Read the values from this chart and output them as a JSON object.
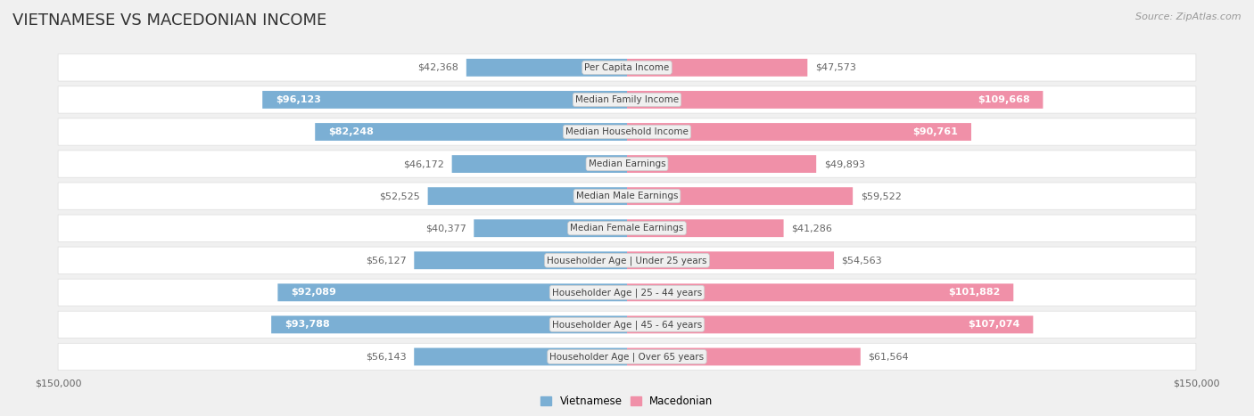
{
  "title": "VIETNAMESE VS MACEDONIAN INCOME",
  "source": "Source: ZipAtlas.com",
  "categories": [
    "Per Capita Income",
    "Median Family Income",
    "Median Household Income",
    "Median Earnings",
    "Median Male Earnings",
    "Median Female Earnings",
    "Householder Age | Under 25 years",
    "Householder Age | 25 - 44 years",
    "Householder Age | 45 - 64 years",
    "Householder Age | Over 65 years"
  ],
  "vietnamese": [
    42368,
    96123,
    82248,
    46172,
    52525,
    40377,
    56127,
    92089,
    93788,
    56143
  ],
  "macedonian": [
    47573,
    109668,
    90761,
    49893,
    59522,
    41286,
    54563,
    101882,
    107074,
    61564
  ],
  "max_val": 150000,
  "viet_color_light": "#a8c8e8",
  "viet_color": "#7bafd4",
  "mac_color_light": "#f8c0d0",
  "mac_color": "#f090a8",
  "bg_color": "#f0f0f0",
  "row_bg_even": "#f8f8f8",
  "row_bg_odd": "#ffffff",
  "label_bg": "#f0f0f0",
  "title_fontsize": 13,
  "source_fontsize": 8,
  "bar_label_fontsize": 8,
  "category_fontsize": 7.5,
  "axis_label_fontsize": 8,
  "viet_label_dark_rows": [
    1,
    2,
    7,
    8
  ],
  "mac_label_dark_rows": [
    1,
    2,
    7,
    8
  ]
}
